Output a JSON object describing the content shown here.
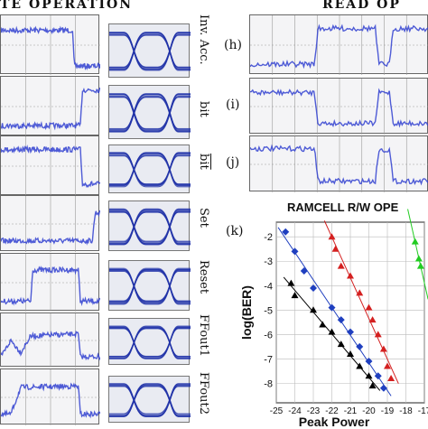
{
  "headers": {
    "write": "TE OPERATION",
    "read": "READ OP"
  },
  "row_labels": [
    "Inv. Acc.",
    "bit",
    "bit",
    "Set",
    "Reset",
    "FFout1",
    "FFout2"
  ],
  "read_panel_labels": [
    "(h)",
    "(i)",
    "(j)"
  ],
  "chart_data": {
    "type": "scatter",
    "panel_label": "(k)",
    "title": "RAMCELL R/W OPE",
    "xlabel": "Peak Power",
    "ylabel": "log(BER)",
    "xlim": [
      -25,
      -17
    ],
    "ylim": [
      -8.8,
      -1.4
    ],
    "x_ticks": [
      "-25",
      "-24",
      "-23",
      "-22",
      "-21",
      "-20",
      "-19",
      "-18",
      "-17"
    ],
    "y_ticks": [
      "-2",
      "-3",
      "-4",
      "-5",
      "-6",
      "-7",
      "-8"
    ],
    "grid": true,
    "series": [
      {
        "color": "#000000",
        "marker": "triangle",
        "points": [
          [
            -24.2,
            -3.9
          ],
          [
            -24.0,
            -4.4
          ],
          [
            -23.0,
            -5.0
          ],
          [
            -22.5,
            -5.6
          ],
          [
            -22.0,
            -5.9
          ],
          [
            -21.5,
            -6.4
          ],
          [
            -21.0,
            -6.8
          ],
          [
            -20.5,
            -7.3
          ],
          [
            -20.0,
            -7.7
          ],
          [
            -19.8,
            -8.1
          ]
        ]
      },
      {
        "color": "#1f3fbf",
        "marker": "diamond",
        "points": [
          [
            -24.5,
            -1.8
          ],
          [
            -24.0,
            -2.6
          ],
          [
            -23.5,
            -3.4
          ],
          [
            -23.0,
            -4.1
          ],
          [
            -22.0,
            -4.9
          ],
          [
            -21.5,
            -5.4
          ],
          [
            -21.0,
            -5.9
          ],
          [
            -20.5,
            -6.5
          ],
          [
            -20.0,
            -7.1
          ],
          [
            -19.5,
            -7.7
          ],
          [
            -19.2,
            -8.2
          ]
        ]
      },
      {
        "color": "#d42020",
        "marker": "triangle",
        "points": [
          [
            -22.0,
            -2.0
          ],
          [
            -21.8,
            -2.5
          ],
          [
            -21.5,
            -3.2
          ],
          [
            -21.0,
            -3.6
          ],
          [
            -20.5,
            -4.3
          ],
          [
            -20.0,
            -4.9
          ],
          [
            -19.8,
            -5.4
          ],
          [
            -19.5,
            -6.0
          ],
          [
            -19.2,
            -6.6
          ],
          [
            -19.0,
            -7.3
          ],
          [
            -18.8,
            -7.8
          ]
        ]
      },
      {
        "color": "#22cc22",
        "marker": "triangle",
        "points": [
          [
            -17.5,
            -2.2
          ],
          [
            -17.3,
            -2.9
          ],
          [
            -17.2,
            -3.2
          ]
        ]
      }
    ]
  }
}
